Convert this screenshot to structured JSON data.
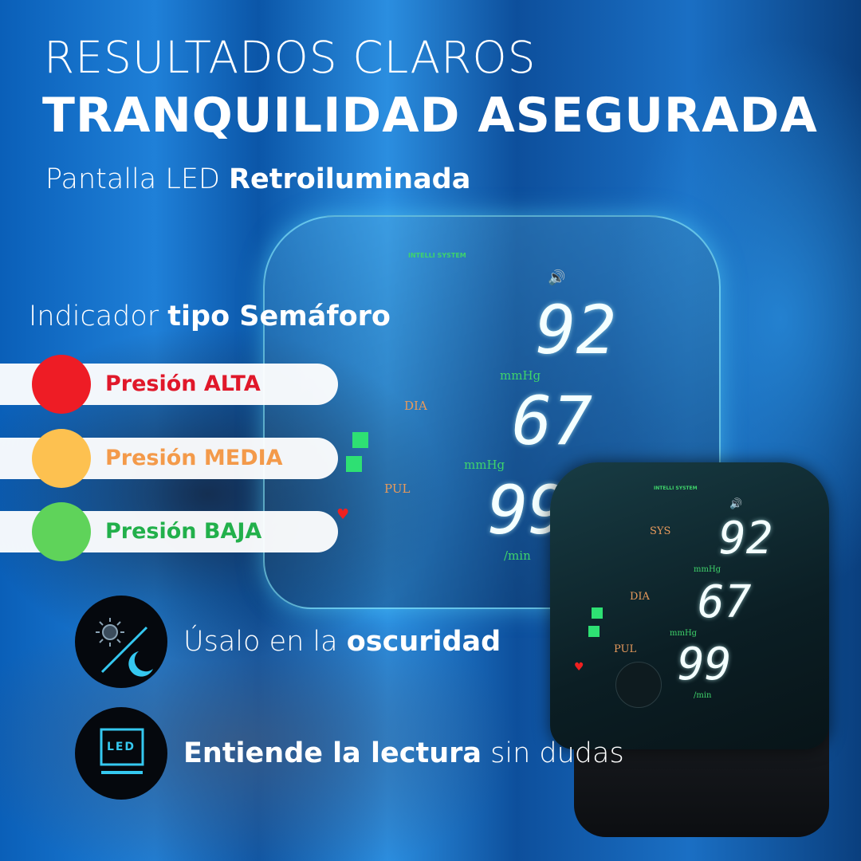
{
  "header": {
    "line1": "RESULTADOS CLAROS",
    "line2": "TRANQUILIDAD ASEGURADA",
    "subtitle_light": "Pantalla LED ",
    "subtitle_bold": "Retroiluminada"
  },
  "indicator": {
    "title_light": "Indicador ",
    "title_bold": "tipo Semáforo",
    "levels": [
      {
        "label": "Presión ALTA",
        "dot_color": "#ee1c25",
        "text_color": "#e0182a"
      },
      {
        "label": "Presión MEDIA",
        "dot_color": "#fdc150",
        "text_color": "#f39a4a"
      },
      {
        "label": "Presión BAJA",
        "dot_color": "#5fd35a",
        "text_color": "#22b04b"
      }
    ]
  },
  "features": [
    {
      "icon": "sun-moon-icon",
      "text_light": "Úsalo en la ",
      "text_bold": "oscuridad"
    },
    {
      "icon": "led-screen-icon",
      "text_bold": "Entiende la lectura",
      "text_light": " sin dudas",
      "icon_text": "LED"
    }
  ],
  "device": {
    "brand": "INTELLI SYSTEM",
    "sys_label": "SYS",
    "dia_label": "DIA",
    "pul_label": "PUL",
    "sys_value": "92",
    "dia_value": "67",
    "pul_value": "99",
    "pressure_unit": "mmHg",
    "pulse_unit": "/min"
  },
  "colors": {
    "accent_cyan": "#35c8f0",
    "display_green": "#3fd46b",
    "label_orange": "#e79a5c"
  }
}
